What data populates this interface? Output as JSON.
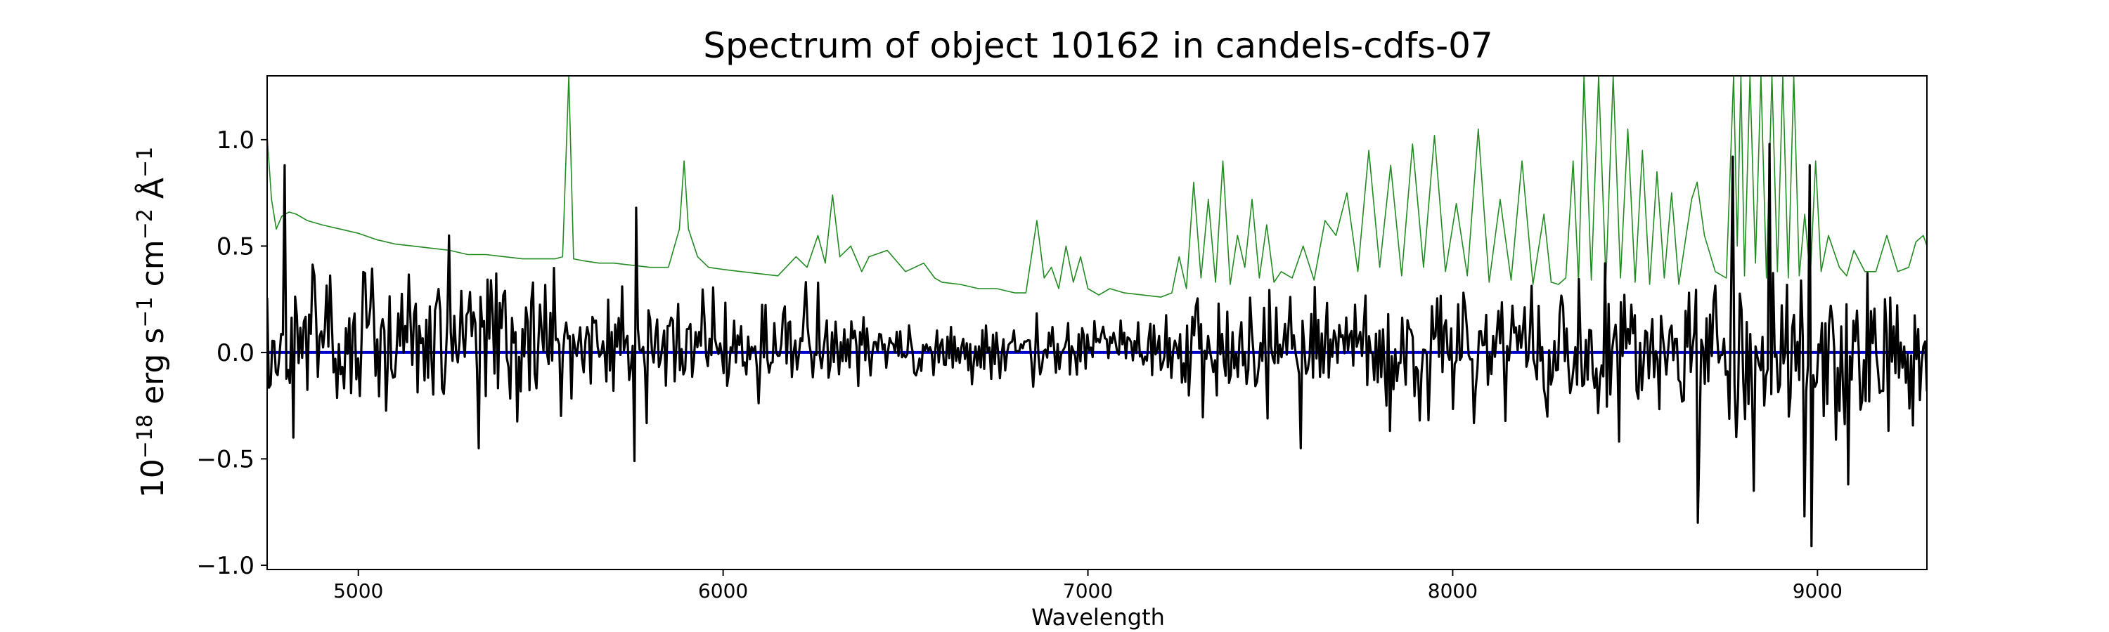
{
  "chart_data": {
    "type": "line",
    "title": "Spectrum of object 10162 in candels-cdfs-07",
    "xlabel": "Wavelength",
    "ylabel": {
      "prefix": "10",
      "exp1": "−18",
      "mid1": " erg s",
      "exp2": "−1",
      "mid2": " cm",
      "exp3": "−2",
      "mid3": " Å",
      "exp4": "−1"
    },
    "xlim": [
      4750,
      9300
    ],
    "ylim": [
      -1.02,
      1.3
    ],
    "xticks": [
      {
        "value": 5000,
        "label": "5000"
      },
      {
        "value": 6000,
        "label": "6000"
      },
      {
        "value": 7000,
        "label": "7000"
      },
      {
        "value": 8000,
        "label": "8000"
      },
      {
        "value": 9000,
        "label": "9000"
      }
    ],
    "yticks": [
      {
        "value": -1.0,
        "label": "−1.0"
      },
      {
        "value": -0.5,
        "label": "−0.5"
      },
      {
        "value": 0.0,
        "label": "0.0"
      },
      {
        "value": 0.5,
        "label": "0.5"
      },
      {
        "value": 1.0,
        "label": "1.0"
      }
    ],
    "grid": false,
    "series": [
      {
        "id": "error",
        "color": "#228b22",
        "x": [
          4750,
          4762,
          4775,
          4790,
          4810,
          4830,
          4860,
          4900,
          4950,
          5000,
          5050,
          5100,
          5150,
          5200,
          5250,
          5300,
          5350,
          5400,
          5450,
          5500,
          5540,
          5560,
          5577,
          5590,
          5620,
          5660,
          5700,
          5750,
          5800,
          5850,
          5880,
          5893,
          5905,
          5930,
          5960,
          6000,
          6050,
          6100,
          6150,
          6200,
          6230,
          6260,
          6280,
          6300,
          6320,
          6350,
          6380,
          6400,
          6450,
          6500,
          6550,
          6580,
          6600,
          6650,
          6700,
          6750,
          6800,
          6830,
          6860,
          6880,
          6900,
          6920,
          6940,
          6960,
          6980,
          7000,
          7030,
          7060,
          7100,
          7150,
          7200,
          7230,
          7250,
          7270,
          7290,
          7310,
          7330,
          7350,
          7370,
          7390,
          7410,
          7430,
          7450,
          7470,
          7490,
          7510,
          7530,
          7560,
          7590,
          7620,
          7650,
          7680,
          7710,
          7740,
          7770,
          7800,
          7830,
          7860,
          7890,
          7920,
          7950,
          7980,
          8010,
          8040,
          8070,
          8100,
          8130,
          8160,
          8190,
          8220,
          8250,
          8270,
          8290,
          8310,
          8330,
          8345,
          8360,
          8380,
          8400,
          8420,
          8440,
          8460,
          8480,
          8500,
          8520,
          8540,
          8560,
          8580,
          8600,
          8620,
          8640,
          8655,
          8670,
          8690,
          8720,
          8750,
          8770,
          8780,
          8790,
          8800,
          8815,
          8830,
          8845,
          8860,
          8875,
          8890,
          8905,
          8920,
          8935,
          8950,
          8965,
          8980,
          8995,
          9010,
          9030,
          9060,
          9080,
          9100,
          9130,
          9160,
          9190,
          9220,
          9250,
          9270,
          9290,
          9300
        ],
        "y": [
          1.02,
          0.72,
          0.58,
          0.64,
          0.66,
          0.65,
          0.62,
          0.6,
          0.58,
          0.56,
          0.53,
          0.51,
          0.5,
          0.49,
          0.48,
          0.46,
          0.46,
          0.45,
          0.44,
          0.44,
          0.44,
          0.45,
          1.3,
          0.44,
          0.43,
          0.42,
          0.42,
          0.41,
          0.4,
          0.4,
          0.58,
          0.9,
          0.58,
          0.45,
          0.4,
          0.39,
          0.38,
          0.37,
          0.36,
          0.45,
          0.4,
          0.55,
          0.42,
          0.74,
          0.45,
          0.5,
          0.38,
          0.45,
          0.48,
          0.38,
          0.42,
          0.35,
          0.33,
          0.32,
          0.3,
          0.3,
          0.28,
          0.28,
          0.62,
          0.35,
          0.4,
          0.3,
          0.5,
          0.33,
          0.45,
          0.3,
          0.27,
          0.3,
          0.28,
          0.27,
          0.26,
          0.28,
          0.45,
          0.3,
          0.8,
          0.35,
          0.72,
          0.33,
          0.9,
          0.32,
          0.55,
          0.4,
          0.72,
          0.35,
          0.6,
          0.33,
          0.38,
          0.35,
          0.5,
          0.34,
          0.62,
          0.55,
          0.75,
          0.38,
          0.95,
          0.4,
          0.88,
          0.36,
          0.98,
          0.4,
          1.02,
          0.38,
          0.7,
          0.36,
          1.05,
          0.33,
          0.72,
          0.34,
          0.9,
          0.32,
          0.65,
          0.33,
          0.32,
          0.35,
          0.9,
          0.33,
          1.3,
          0.34,
          1.3,
          0.34,
          1.3,
          0.35,
          1.05,
          0.33,
          0.95,
          0.32,
          0.85,
          0.35,
          0.75,
          0.32,
          0.55,
          0.72,
          0.8,
          0.55,
          0.38,
          0.35,
          1.3,
          0.5,
          1.3,
          0.36,
          1.3,
          0.42,
          1.3,
          0.35,
          1.3,
          0.38,
          1.3,
          0.35,
          1.3,
          0.36,
          0.65,
          0.35,
          0.9,
          0.38,
          0.55,
          0.4,
          0.36,
          0.48,
          0.38,
          0.38,
          0.55,
          0.38,
          0.4,
          0.52,
          0.55,
          0.5
        ]
      },
      {
        "id": "zero-line",
        "color": "#0000cd",
        "x": [
          4750,
          9300
        ],
        "y": [
          0.0,
          0.0
        ]
      },
      {
        "id": "flux",
        "color": "#000000",
        "sampling": {
          "x_start": 4750,
          "x_end": 9300,
          "count": 950
        },
        "generator": {
          "seed": 10162,
          "regions": [
            {
              "from": 4750,
              "to": 5400,
              "offset": 0.06,
              "amplitude": 0.27
            },
            {
              "from": 5400,
              "to": 5800,
              "offset": 0.04,
              "amplitude": 0.25
            },
            {
              "from": 5800,
              "to": 6400,
              "offset": 0.03,
              "amplitude": 0.17
            },
            {
              "from": 6400,
              "to": 7200,
              "offset": 0.01,
              "amplitude": 0.1
            },
            {
              "from": 7200,
              "to": 8200,
              "offset": 0.0,
              "amplitude": 0.21
            },
            {
              "from": 8200,
              "to": 9300,
              "offset": 0.0,
              "amplitude": 0.28
            }
          ],
          "features": [
            {
              "x": 4798,
              "y": 0.88
            },
            {
              "x": 4820,
              "y": -0.4
            },
            {
              "x": 5250,
              "y": 0.55
            },
            {
              "x": 5330,
              "y": -0.45
            },
            {
              "x": 5757,
              "y": -0.51
            },
            {
              "x": 5760,
              "y": 0.68
            },
            {
              "x": 7585,
              "y": -0.45
            },
            {
              "x": 8672,
              "y": -0.8
            },
            {
              "x": 8825,
              "y": -0.65
            },
            {
              "x": 8868,
              "y": 0.98
            },
            {
              "x": 8965,
              "y": -0.77
            },
            {
              "x": 8978,
              "y": 0.88
            },
            {
              "x": 8983,
              "y": -0.91
            },
            {
              "x": 8770,
              "y": 0.92
            },
            {
              "x": 9085,
              "y": -0.62
            }
          ]
        }
      }
    ]
  }
}
